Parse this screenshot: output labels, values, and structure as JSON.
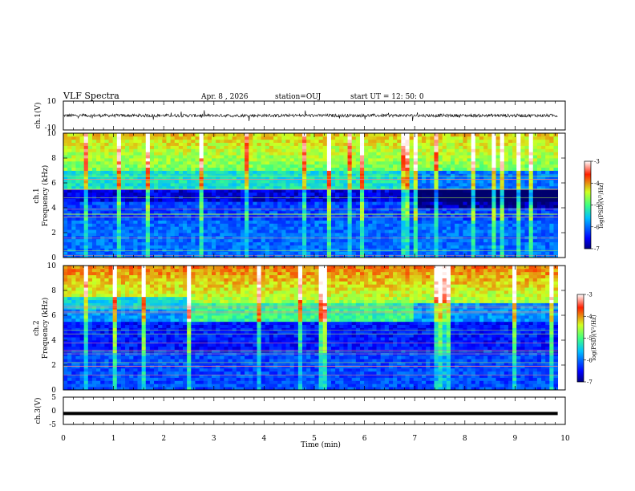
{
  "header": {
    "title": "VLF Spectra",
    "date": "Apr. 8  , 2026",
    "station": "station=OUJ",
    "start": "start  UT  =   12: 50: 0"
  },
  "chart_data": [
    {
      "type": "line",
      "name": "ch1-waveform",
      "ylabel": "ch.1(V)",
      "ylim": [
        -10,
        10
      ],
      "yticks": [
        "10",
        "-10"
      ],
      "x_range_min": [
        0,
        9.85
      ],
      "description_level": "noise around 0 V"
    },
    {
      "type": "heatmap",
      "name": "ch1-spectrogram",
      "ylabel_top": "ch.1",
      "ylabel": "Frequency  (kHz)",
      "ylim": [
        0,
        10
      ],
      "yticks": [
        "0",
        "2",
        "4",
        "6",
        "8",
        "10"
      ],
      "colorbar": {
        "label": "log(PSD)(V²/Hz)",
        "range": [
          -7,
          -3
        ],
        "ticks": [
          "-3",
          "-4",
          "-5",
          "-6",
          "-7"
        ]
      }
    },
    {
      "type": "heatmap",
      "name": "ch2-spectrogram",
      "ylabel_top": "ch.2",
      "ylabel": "Frequency  (kHz)",
      "ylim": [
        0,
        10
      ],
      "yticks": [
        "0",
        "2",
        "4",
        "6",
        "8",
        "10"
      ],
      "colorbar": {
        "label": "log(PSD)(V²/Hz)",
        "range": [
          -7,
          -3
        ],
        "ticks": [
          "-3",
          "-4",
          "-5",
          "-6",
          "-7"
        ]
      }
    },
    {
      "type": "line",
      "name": "ch3-waveform",
      "ylabel": "ch.3(V)",
      "ylim": [
        -5,
        5
      ],
      "yticks": [
        "5",
        "0",
        "-5"
      ],
      "constant_value": -1
    }
  ],
  "x_axis": {
    "label": "Time  (min)",
    "ticks": [
      "0",
      "1",
      "2",
      "3",
      "4",
      "5",
      "6",
      "7",
      "8",
      "9",
      "10"
    ],
    "xlim": [
      0,
      10
    ]
  }
}
